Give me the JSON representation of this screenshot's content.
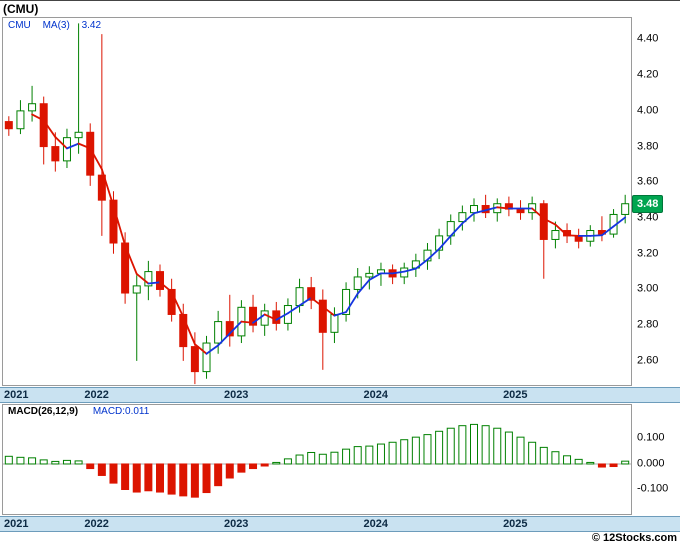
{
  "header": {
    "title": "(CMU)"
  },
  "main_chart": {
    "legend": {
      "symbol": "CMU",
      "ma_label": "MA(3)",
      "ma_value": "3.42"
    },
    "last_price_badge": "3.48"
  },
  "macd_panel": {
    "legend": {
      "label": "MACD(26,12,9)",
      "value": "MACD:0.011"
    }
  },
  "x_axis": {
    "year_labels": [
      "2021",
      "2022",
      "2023",
      "2024",
      "2025"
    ]
  },
  "footer": {
    "credit": "© 12Stocks.com"
  },
  "colors": {
    "up_fill": "#ffffff",
    "up_stroke": "#008000",
    "down": "#dc1400",
    "ma_up": "#1535e0",
    "ma_down": "#dc1400",
    "badge_bg": "#00a550",
    "badge_border": "#00763a",
    "band_bg": "#c9e2f1",
    "band_border": "#6d9cbb",
    "legend_blue": "#0033cc",
    "year_label": "#0d2b45",
    "zero_line": "#aaaaaa"
  },
  "chart_data": [
    {
      "type": "candlestick",
      "title": "(CMU)",
      "ma_period": 3,
      "ma_last": 3.42,
      "last_close": 3.48,
      "ylim": [
        2.465,
        4.52
      ],
      "y_ticks": [
        "4.40",
        "4.20",
        "4.00",
        "3.80",
        "3.60",
        "3.40",
        "3.20",
        "3.00",
        "2.80",
        "2.60"
      ],
      "x": [
        "2021-06",
        "2021-07",
        "2021-08",
        "2021-09",
        "2021-10",
        "2021-11",
        "2021-12",
        "2022-01",
        "2022-02",
        "2022-03",
        "2022-04",
        "2022-05",
        "2022-06",
        "2022-07",
        "2022-08",
        "2022-09",
        "2022-10",
        "2022-11",
        "2022-12",
        "2023-01",
        "2023-02",
        "2023-03",
        "2023-04",
        "2023-05",
        "2023-06",
        "2023-07",
        "2023-08",
        "2023-09",
        "2023-10",
        "2023-11",
        "2023-12",
        "2024-01",
        "2024-02",
        "2024-03",
        "2024-04",
        "2024-05",
        "2024-06",
        "2024-07",
        "2024-08",
        "2024-09",
        "2024-10",
        "2024-11",
        "2024-12",
        "2025-01",
        "2025-02",
        "2025-03",
        "2025-04",
        "2025-05",
        "2025-06",
        "2025-07",
        "2025-08",
        "2025-09",
        "2025-10",
        "2025-11"
      ],
      "open": [
        3.94,
        3.9,
        4.0,
        4.04,
        3.8,
        3.72,
        3.85,
        3.88,
        3.64,
        3.5,
        3.26,
        2.98,
        3.02,
        3.1,
        3.0,
        2.86,
        2.68,
        2.54,
        2.7,
        2.82,
        2.74,
        2.9,
        2.8,
        2.88,
        2.81,
        2.91,
        3.01,
        2.94,
        2.76,
        2.86,
        3.0,
        3.07,
        3.09,
        3.11,
        3.07,
        3.12,
        3.16,
        3.22,
        3.3,
        3.38,
        3.43,
        3.47,
        3.43,
        3.48,
        3.45,
        3.43,
        3.48,
        3.28,
        3.33,
        3.3,
        3.27,
        3.33,
        3.31,
        3.42
      ],
      "high": [
        3.97,
        4.06,
        4.14,
        4.08,
        3.88,
        3.9,
        4.49,
        3.93,
        4.43,
        3.55,
        3.32,
        3.08,
        3.16,
        3.14,
        3.06,
        2.92,
        2.76,
        2.74,
        2.88,
        2.97,
        2.94,
        2.97,
        2.92,
        2.93,
        2.95,
        3.06,
        3.07,
        3.0,
        2.9,
        3.04,
        3.12,
        3.13,
        3.15,
        3.14,
        3.15,
        3.2,
        3.26,
        3.34,
        3.42,
        3.47,
        3.51,
        3.53,
        3.51,
        3.52,
        3.5,
        3.52,
        3.5,
        3.38,
        3.37,
        3.34,
        3.36,
        3.41,
        3.45,
        3.53
      ],
      "low": [
        3.86,
        3.87,
        3.94,
        3.7,
        3.66,
        3.68,
        3.76,
        3.58,
        3.3,
        3.2,
        2.92,
        2.6,
        2.94,
        2.96,
        2.82,
        2.6,
        2.47,
        2.5,
        2.64,
        2.68,
        2.7,
        2.76,
        2.74,
        2.77,
        2.77,
        2.87,
        2.89,
        2.55,
        2.7,
        2.82,
        2.95,
        3.0,
        3.02,
        3.03,
        3.03,
        3.07,
        3.11,
        3.17,
        3.25,
        3.33,
        3.38,
        3.4,
        3.38,
        3.41,
        3.39,
        3.39,
        3.06,
        3.23,
        3.26,
        3.23,
        3.24,
        3.27,
        3.29,
        3.37
      ],
      "close": [
        3.9,
        4.0,
        4.04,
        3.8,
        3.72,
        3.85,
        3.88,
        3.64,
        3.5,
        3.26,
        2.98,
        3.02,
        3.1,
        3.0,
        2.86,
        2.68,
        2.54,
        2.7,
        2.82,
        2.74,
        2.9,
        2.8,
        2.88,
        2.81,
        2.91,
        3.01,
        2.94,
        2.76,
        2.86,
        3.0,
        3.07,
        3.09,
        3.11,
        3.07,
        3.12,
        3.16,
        3.22,
        3.3,
        3.38,
        3.43,
        3.47,
        3.43,
        3.48,
        3.45,
        3.43,
        3.48,
        3.28,
        3.33,
        3.3,
        3.27,
        3.33,
        3.31,
        3.42,
        3.48
      ]
    },
    {
      "type": "bar",
      "name": "MACD(26,12,9) histogram",
      "last": 0.011,
      "ylim": [
        -0.196,
        0.231
      ],
      "y_ticks": [
        "0.100",
        "0.000",
        "-0.100"
      ],
      "values": [
        0.03,
        0.026,
        0.024,
        0.016,
        0.01,
        0.014,
        0.012,
        -0.018,
        -0.045,
        -0.075,
        -0.1,
        -0.11,
        -0.105,
        -0.11,
        -0.118,
        -0.125,
        -0.13,
        -0.112,
        -0.085,
        -0.055,
        -0.032,
        -0.018,
        -0.008,
        0.006,
        0.02,
        0.035,
        0.045,
        0.038,
        0.046,
        0.058,
        0.068,
        0.07,
        0.078,
        0.085,
        0.095,
        0.105,
        0.115,
        0.128,
        0.14,
        0.15,
        0.155,
        0.15,
        0.14,
        0.125,
        0.105,
        0.085,
        0.065,
        0.048,
        0.032,
        0.018,
        0.006,
        -0.012,
        -0.01,
        0.011
      ]
    }
  ]
}
